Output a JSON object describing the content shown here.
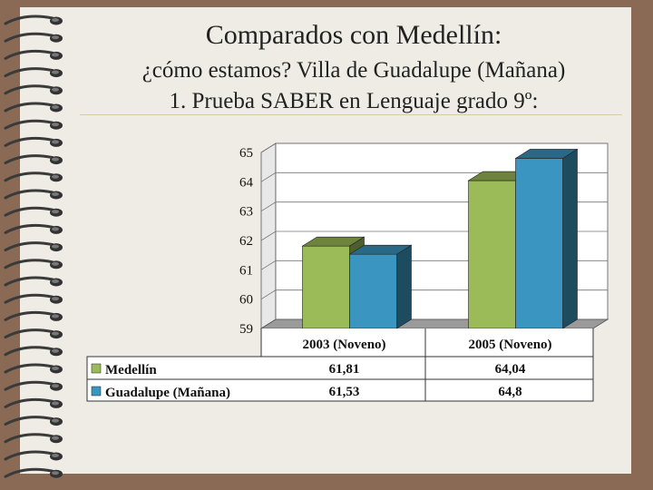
{
  "slide": {
    "title_line1": "Comparados con Medellín:",
    "title_line2": "¿cómo estamos? Villa de Guadalupe (Mañana)",
    "title_line3": "1. Prueba SABER en Lenguaje grado 9º:"
  },
  "colors": {
    "background": "#8a6a55",
    "paper": "#efece5",
    "medellin": "#9bbb59",
    "guadalupe": "#3a95c0"
  },
  "chart_data": {
    "type": "bar",
    "categories": [
      "2003 (Noveno)",
      "2005 (Noveno)"
    ],
    "series": [
      {
        "name": "Medellín",
        "values": [
          61.81,
          64.04
        ],
        "labels": [
          "61,81",
          "64,04"
        ],
        "color": "#9bbb59"
      },
      {
        "name": "Guadalupe (Mañana)",
        "values": [
          61.53,
          64.8
        ],
        "labels": [
          "61,53",
          "64,8"
        ],
        "color": "#3a95c0"
      }
    ],
    "ylim": [
      59,
      65
    ],
    "yticks": [
      "59",
      "60",
      "61",
      "62",
      "63",
      "64",
      "65"
    ],
    "grid": true,
    "legend": "data-table-below",
    "title": "",
    "xlabel": "",
    "ylabel": ""
  }
}
